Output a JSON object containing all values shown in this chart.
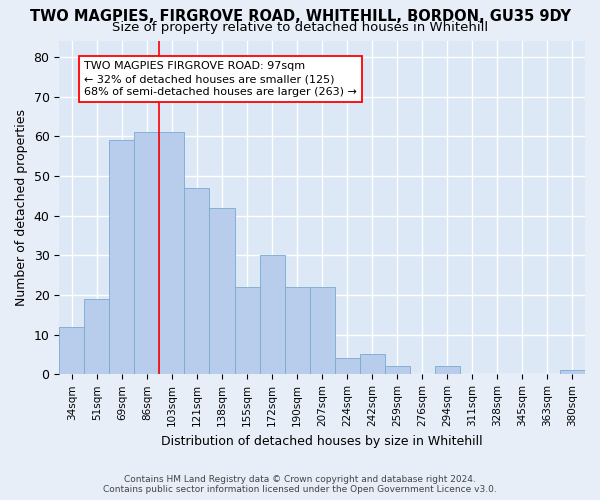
{
  "title": "TWO MAGPIES, FIRGROVE ROAD, WHITEHILL, BORDON, GU35 9DY",
  "subtitle": "Size of property relative to detached houses in Whitehill",
  "xlabel": "Distribution of detached houses by size in Whitehill",
  "ylabel": "Number of detached properties",
  "footer_line1": "Contains HM Land Registry data © Crown copyright and database right 2024.",
  "footer_line2": "Contains public sector information licensed under the Open Government Licence v3.0.",
  "bar_labels": [
    "34sqm",
    "51sqm",
    "69sqm",
    "86sqm",
    "103sqm",
    "121sqm",
    "138sqm",
    "155sqm",
    "172sqm",
    "190sqm",
    "207sqm",
    "224sqm",
    "242sqm",
    "259sqm",
    "276sqm",
    "294sqm",
    "311sqm",
    "328sqm",
    "345sqm",
    "363sqm",
    "380sqm"
  ],
  "bar_values": [
    12,
    19,
    59,
    61,
    61,
    47,
    42,
    22,
    30,
    22,
    22,
    4,
    5,
    2,
    0,
    2,
    0,
    0,
    0,
    0,
    1
  ],
  "bar_color": "#b8ccec",
  "bar_edge_color": "#7aaad0",
  "background_color": "#dce8f5",
  "grid_color": "#ffffff",
  "annotation_line1": "TWO MAGPIES FIRGROVE ROAD: 97sqm",
  "annotation_line2": "← 32% of detached houses are smaller (125)",
  "annotation_line3": "68% of semi-detached houses are larger (263) →",
  "redline_bar_index": 4,
  "ylim_max": 84,
  "yticks": [
    0,
    10,
    20,
    30,
    40,
    50,
    60,
    70,
    80
  ],
  "fig_bg": "#e8eef8",
  "title_fontsize": 10.5,
  "subtitle_fontsize": 9.5
}
